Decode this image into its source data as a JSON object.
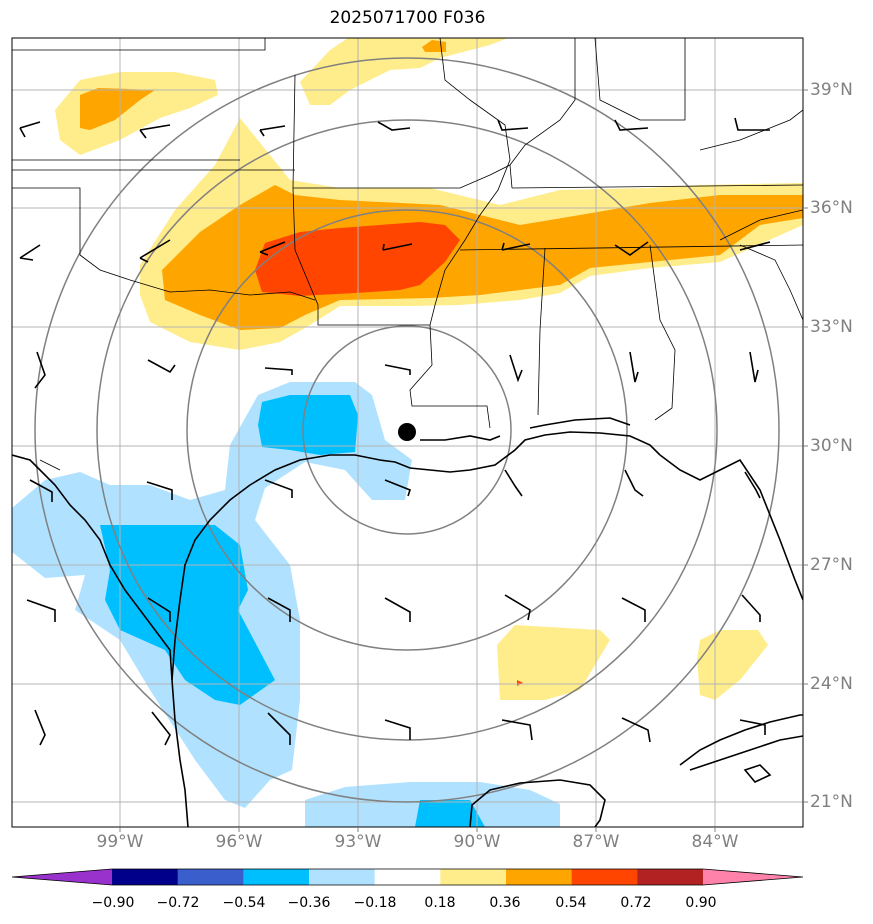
{
  "title": "2025071700 F036",
  "lat_labels": [
    "39°N",
    "36°N",
    "33°N",
    "30°N",
    "27°N",
    "24°N",
    "21°N"
  ],
  "lon_labels": [
    "99°W",
    "96°W",
    "93°W",
    "90°W",
    "87°W",
    "84°W"
  ],
  "colorbar": {
    "ticks": [
      "−0.90",
      "−0.72",
      "−0.54",
      "−0.36",
      "−0.18",
      "0.18",
      "0.36",
      "0.54",
      "0.72",
      "0.90"
    ],
    "colors": [
      "#9932cc",
      "#00008b",
      "#3a5fcd",
      "#00bfff",
      "#b0e2ff",
      "#ffffff",
      "#ffec8b",
      "#ffa500",
      "#ff4500",
      "#b22222",
      "#ff82ab"
    ]
  },
  "colors": {
    "light_blue": "#b0e2ff",
    "deep_sky_blue": "#00bfff",
    "light_yellow": "#ffec8b",
    "orange": "#ffa500",
    "orange_red": "#ff4500",
    "range_rings": "#808080",
    "grid": "#b4b4b4"
  },
  "map": {
    "center_marker": "filled-black-circle",
    "range_rings": 4,
    "lon_range": [
      -101.8,
      -81.7
    ],
    "lat_range": [
      20.3,
      40.3
    ]
  }
}
